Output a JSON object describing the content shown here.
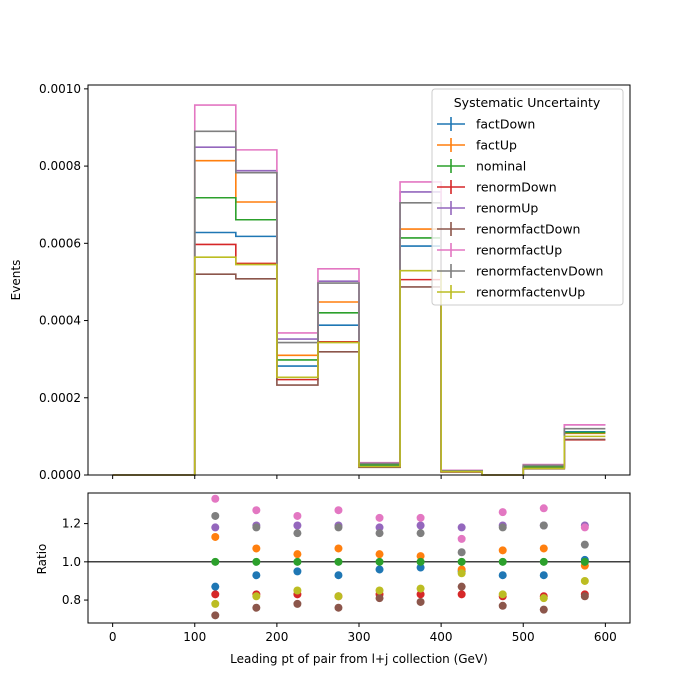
{
  "chart_data": [
    {
      "type": "step",
      "ylabel": "Events",
      "xlim": [
        -30,
        630
      ],
      "ylim": [
        0,
        0.00101
      ],
      "yticks": [
        "0.0000",
        "0.0002",
        "0.0004",
        "0.0006",
        "0.0008",
        "0.0010"
      ],
      "ytick_values": [
        0,
        0.0002,
        0.0004,
        0.0006,
        0.0008,
        0.001
      ],
      "bin_edges": [
        0,
        50,
        100,
        150,
        200,
        250,
        300,
        350,
        400,
        450,
        500,
        550,
        600
      ],
      "legend": {
        "title": "Systematic Uncertainty",
        "placement": "upper right"
      },
      "series": [
        {
          "name": "factDown",
          "color": "#1f77b4",
          "values": [
            0,
            0,
            0.000628,
            0.000618,
            0.000282,
            0.000388,
            2.4e-05,
            0.000593,
            9e-06,
            0,
            2e-05,
            0.000112
          ]
        },
        {
          "name": "factUp",
          "color": "#ff7f0e",
          "values": [
            0,
            0,
            0.000814,
            0.000707,
            0.00031,
            0.000448,
            2.7e-05,
            0.000637,
            1e-05,
            0,
            2.2e-05,
            0.000108
          ]
        },
        {
          "name": "nominal",
          "color": "#2ca02c",
          "values": [
            0,
            0,
            0.000718,
            0.000661,
            0.000298,
            0.00042,
            2.6e-05,
            0.000614,
            1e-05,
            0,
            2.1e-05,
            0.00011
          ]
        },
        {
          "name": "renormDown",
          "color": "#d62728",
          "values": [
            0,
            0,
            0.000597,
            0.000548,
            0.000247,
            0.000345,
            2.1e-05,
            0.000506,
            8e-06,
            0,
            1.7e-05,
            9.1e-05
          ]
        },
        {
          "name": "renormUp",
          "color": "#9467bd",
          "values": [
            0,
            0,
            0.000849,
            0.000788,
            0.000352,
            0.000502,
            3.1e-05,
            0.000733,
            1.2e-05,
            0,
            2.5e-05,
            0.00013
          ]
        },
        {
          "name": "renormfactDown",
          "color": "#8c564b",
          "values": [
            0,
            0,
            0.00052,
            0.000508,
            0.000233,
            0.000319,
            2e-05,
            0.000487,
            8e-06,
            0,
            1.6e-05,
            9.2e-05
          ]
        },
        {
          "name": "renormfactUp",
          "color": "#e377c2",
          "values": [
            0,
            0,
            0.000958,
            0.000842,
            0.000368,
            0.000534,
            3.2e-05,
            0.000759,
            1.2e-05,
            0,
            2.7e-05,
            0.00013
          ]
        },
        {
          "name": "renormfactenvDown",
          "color": "#7f7f7f",
          "values": [
            0,
            0,
            0.00089,
            0.000783,
            0.000343,
            0.000497,
            3e-05,
            0.000705,
            1.1e-05,
            0,
            2.5e-05,
            0.00012
          ]
        },
        {
          "name": "renormfactenvUp",
          "color": "#bcbd22",
          "values": [
            0,
            0,
            0.000564,
            0.000545,
            0.000253,
            0.000343,
            2.2e-05,
            0.000529,
            9e-06,
            0,
            1.7e-05,
            0.0001
          ]
        }
      ]
    },
    {
      "type": "scatter",
      "xlabel": "Leading pt of pair from l+j collection (GeV)",
      "ylabel": "Ratio",
      "xlim": [
        -30,
        630
      ],
      "ylim": [
        0.68,
        1.36
      ],
      "yticks": [
        "0.8",
        "1.0",
        "1.2"
      ],
      "ytick_values": [
        0.8,
        1.0,
        1.2
      ],
      "xticks": [
        "0",
        "100",
        "200",
        "300",
        "400",
        "500",
        "600"
      ],
      "xtick_values": [
        0,
        100,
        200,
        300,
        400,
        500,
        600
      ],
      "reference_line": 1.0,
      "x": [
        125,
        175,
        225,
        275,
        325,
        375,
        425,
        475,
        525,
        575
      ],
      "series": [
        {
          "name": "factDown",
          "color": "#1f77b4",
          "values": [
            0.87,
            0.93,
            0.95,
            0.93,
            0.96,
            0.97,
            0.95,
            0.93,
            0.93,
            1.01
          ]
        },
        {
          "name": "factUp",
          "color": "#ff7f0e",
          "values": [
            1.13,
            1.07,
            1.04,
            1.07,
            1.04,
            1.03,
            0.96,
            1.06,
            1.07,
            0.98
          ]
        },
        {
          "name": "nominal",
          "color": "#2ca02c",
          "values": [
            1.0,
            1.0,
            1.0,
            1.0,
            1.0,
            1.0,
            1.0,
            1.0,
            1.0,
            1.0
          ]
        },
        {
          "name": "renormDown",
          "color": "#d62728",
          "values": [
            0.83,
            0.83,
            0.83,
            0.82,
            0.83,
            0.83,
            0.83,
            0.82,
            0.82,
            0.83
          ]
        },
        {
          "name": "renormUp",
          "color": "#9467bd",
          "values": [
            1.18,
            1.19,
            1.19,
            1.19,
            1.18,
            1.19,
            1.18,
            1.19,
            1.19,
            1.19
          ]
        },
        {
          "name": "renormfactDown",
          "color": "#8c564b",
          "values": [
            0.72,
            0.76,
            0.78,
            0.76,
            0.81,
            0.79,
            0.87,
            0.77,
            0.75,
            0.82
          ]
        },
        {
          "name": "renormfactUp",
          "color": "#e377c2",
          "values": [
            1.33,
            1.27,
            1.24,
            1.27,
            1.23,
            1.23,
            1.12,
            1.26,
            1.28,
            1.18
          ]
        },
        {
          "name": "renormfactenvDown",
          "color": "#7f7f7f",
          "values": [
            1.24,
            1.18,
            1.15,
            1.18,
            1.15,
            1.15,
            1.05,
            1.18,
            1.19,
            1.09
          ]
        },
        {
          "name": "renormfactenvUp",
          "color": "#bcbd22",
          "values": [
            0.78,
            0.82,
            0.85,
            0.82,
            0.85,
            0.86,
            0.94,
            0.83,
            0.81,
            0.9
          ]
        }
      ]
    }
  ]
}
